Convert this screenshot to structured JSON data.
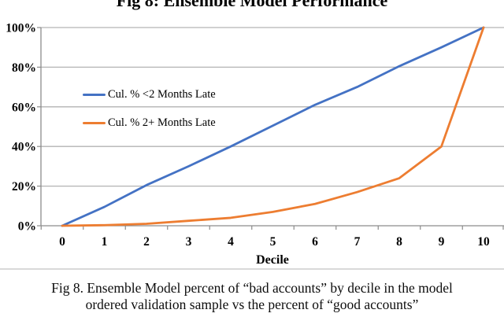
{
  "figure": {
    "title": "Fig 8: Ensemble Model Performance",
    "caption_line1": "Fig 8. Ensemble Model percent of “bad accounts” by decile in the model",
    "caption_line2": "ordered validation sample vs the percent of “good accounts”"
  },
  "chart_data": {
    "type": "line",
    "title": "Fig 8: Ensemble Model Performance",
    "xlabel": "Decile",
    "ylabel": "",
    "x": [
      0,
      1,
      2,
      3,
      4,
      5,
      6,
      7,
      8,
      9,
      10
    ],
    "xtick_labels": [
      "0",
      "1",
      "2",
      "3",
      "4",
      "5",
      "6",
      "7",
      "8",
      "9",
      "10"
    ],
    "yticks": [
      0,
      20,
      40,
      60,
      80,
      100
    ],
    "ytick_labels": [
      "0%",
      "20%",
      "40%",
      "60%",
      "80%",
      "100%"
    ],
    "ylim": [
      0,
      100
    ],
    "grid": true,
    "legend_position": "inside-upper-left",
    "series": [
      {
        "name": "Cul. % <2 Months Late",
        "color": "#4472C4",
        "values": [
          0,
          9.5,
          20.5,
          30,
          40,
          50.5,
          61,
          70,
          80.5,
          90,
          100
        ]
      },
      {
        "name": "Cul. % 2+ Months Late",
        "color": "#ED7D31",
        "values": [
          0,
          0.3,
          1,
          2.5,
          4,
          7,
          11,
          17,
          24,
          40,
          100
        ]
      }
    ],
    "grid_color": "#b3b3b3",
    "axis_color": "#8c8c8c",
    "tick_label_color": "#000000"
  }
}
